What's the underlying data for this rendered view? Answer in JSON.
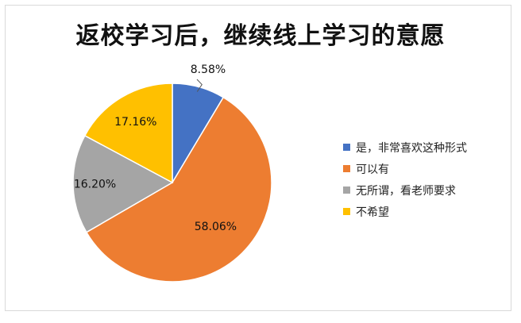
{
  "chart_data": {
    "type": "pie",
    "title": "返校学习后，继续线上学习的意愿",
    "categories": [
      "是，非常喜欢这种形式",
      "可以有",
      "无所谓，看老师要求",
      "不希望"
    ],
    "values": [
      8.58,
      58.06,
      16.2,
      17.16
    ],
    "value_labels": [
      "8.58%",
      "58.06%",
      "16.20%",
      "17.16%"
    ],
    "colors": [
      "#4472C4",
      "#ED7D31",
      "#A5A5A5",
      "#FFC000"
    ],
    "legend_position": "right"
  }
}
